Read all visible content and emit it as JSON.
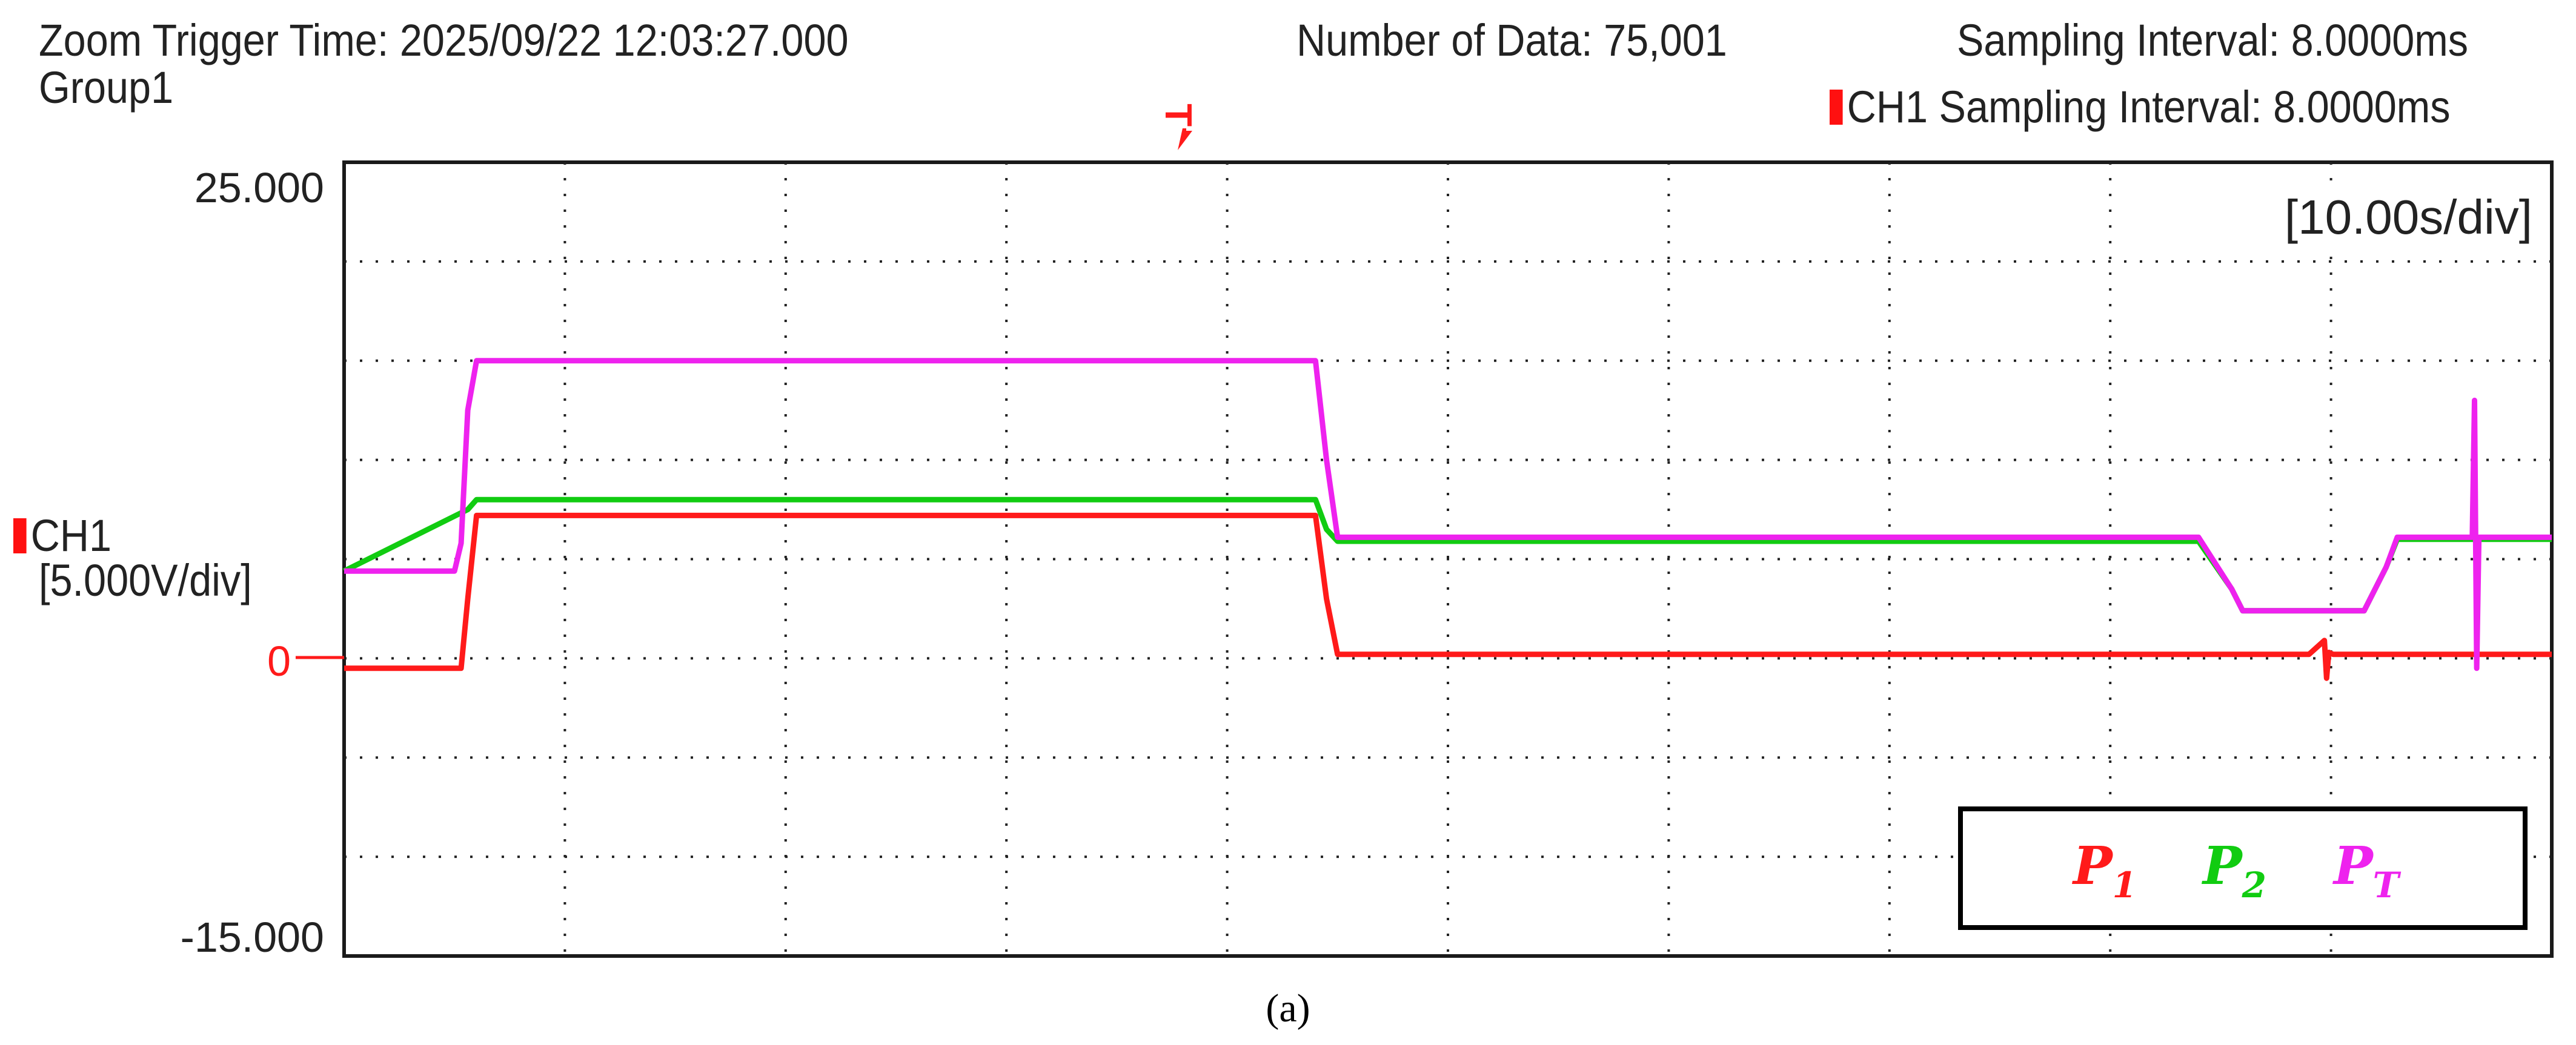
{
  "header": {
    "trigger_time": "Zoom Trigger Time: 2025/09/22 12:03:27.000",
    "group": "Group1",
    "number_of_data": "Number of Data: 75,001",
    "sampling_interval": "Sampling Interval:  8.0000ms",
    "ch1_sampling_interval": "CH1 Sampling Interval:  8.0000ms"
  },
  "trigger_marker": "T",
  "time_div": "[10.00s/div]",
  "channel": {
    "name": "CH1",
    "scale": "[5.000V/div]",
    "zero_label": "0"
  },
  "caption": "(a)",
  "legend": [
    {
      "label": "P",
      "sub": "1",
      "color": "#ff1a1a"
    },
    {
      "label": "P",
      "sub": "2",
      "color": "#11cc11"
    },
    {
      "label": "P",
      "sub": "T",
      "color": "#ee22ee"
    }
  ],
  "chart_data": {
    "type": "line",
    "title": "",
    "xlabel": "",
    "ylabel": "",
    "x_unit": "s",
    "xlim": [
      0,
      100
    ],
    "ylim": [
      -15,
      25
    ],
    "yticks": [
      25,
      0,
      -15
    ],
    "ytick_labels": [
      "25.000",
      "0",
      "-15.000"
    ],
    "grid": true,
    "x_divisions": 10,
    "y_divisions": 8,
    "legend_position": "bottom-right",
    "series": [
      {
        "name": "P1",
        "color": "#ff1a1a",
        "x": [
          0,
          5.3,
          5.6,
          6.0,
          44.0,
          44.5,
          45.0,
          89.0,
          89.7,
          89.8,
          89.9,
          90.1,
          100
        ],
        "y": [
          -0.5,
          -0.5,
          3.0,
          7.2,
          7.2,
          3.0,
          0.2,
          0.2,
          0.9,
          -1.0,
          0.3,
          0.2,
          0.2
        ]
      },
      {
        "name": "P2",
        "color": "#11cc11",
        "x": [
          0,
          5.6,
          6.0,
          44.0,
          44.5,
          45.0,
          84.0,
          85.5,
          86.0,
          91.5,
          92.5,
          93.0,
          100
        ],
        "y": [
          4.4,
          7.5,
          8.0,
          8.0,
          6.5,
          5.9,
          5.9,
          3.5,
          2.4,
          2.4,
          4.6,
          6.0,
          6.0
        ]
      },
      {
        "name": "PT",
        "color": "#ee22ee",
        "x": [
          0,
          5.0,
          5.3,
          5.6,
          6.0,
          44.0,
          44.5,
          45.0,
          84.0,
          85.5,
          86.0,
          91.5,
          92.5,
          93.0,
          96.4,
          96.5,
          96.6,
          96.7,
          100
        ],
        "y": [
          4.4,
          4.4,
          5.8,
          12.5,
          15.0,
          15.0,
          10.0,
          6.1,
          6.1,
          3.5,
          2.4,
          2.4,
          4.6,
          6.1,
          6.1,
          13.0,
          -0.5,
          6.1,
          6.1
        ]
      }
    ]
  }
}
